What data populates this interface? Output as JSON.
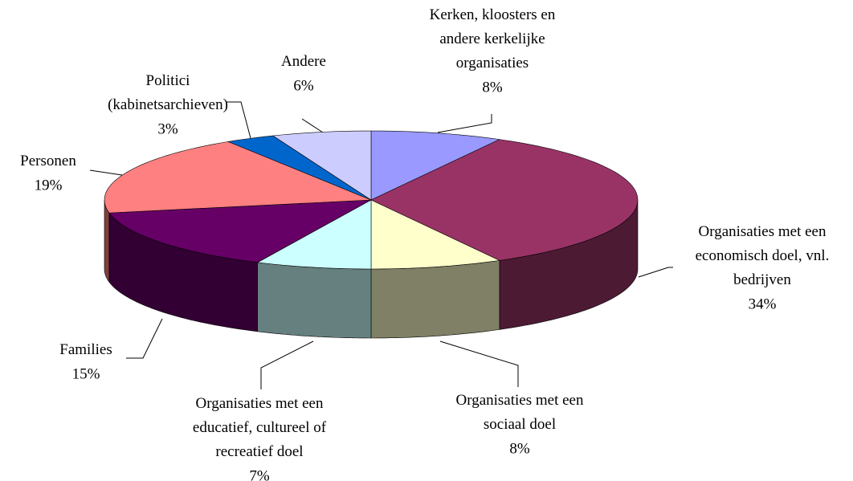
{
  "chart_data": {
    "type": "pie3d",
    "categories": [
      "Kerken, kloosters en\nandere kerkelijke\norganisaties",
      "Organisaties met een\neconomisch doel, vnl.\nbedrijven",
      "Organisaties met een\nsociaal doel",
      "Organisaties met een\neducatief, cultureel of\nrecreatief doel",
      "Families",
      "Personen",
      "Politici\n(kabinetsarchieven)",
      "Andere"
    ],
    "values": [
      8,
      34,
      8,
      7,
      15,
      19,
      3,
      6
    ],
    "value_labels": [
      "8%",
      "34%",
      "8%",
      "7%",
      "15%",
      "19%",
      "3%",
      "6%"
    ],
    "colors": [
      "#9999ff",
      "#993366",
      "#ffffcc",
      "#ccffff",
      "#660066",
      "#ff8080",
      "#0066cc",
      "#ccccff"
    ]
  }
}
